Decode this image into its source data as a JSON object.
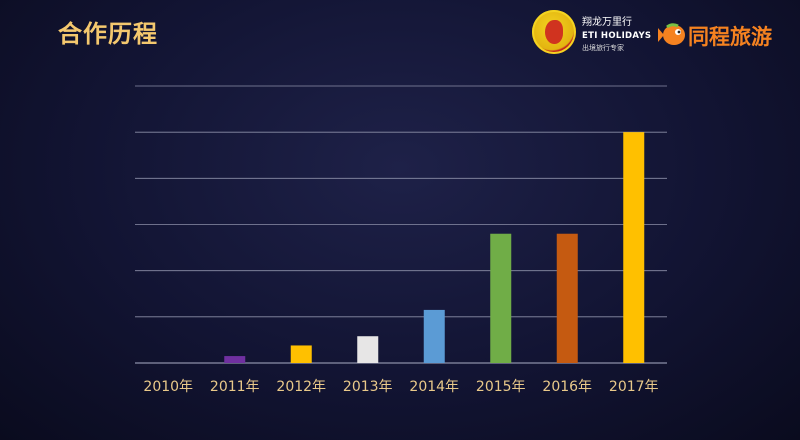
{
  "header": {
    "title": "合作历程"
  },
  "logos": [
    {
      "name": "翔龙万里行",
      "english": "ETI HOLIDAYS",
      "tagline": "出境旅行专家"
    },
    {
      "name": "同程旅游"
    }
  ],
  "colors": {
    "title": "#f4c86e",
    "tick_label": "#e9c98a",
    "grid": "#8c8fa8",
    "logo2": "#f58220"
  },
  "chart_data": {
    "type": "bar",
    "categories": [
      "2010年",
      "2011年",
      "2012年",
      "2013年",
      "2014年",
      "2015年",
      "2016年",
      "2017年"
    ],
    "values": [
      0,
      0.15,
      0.38,
      0.58,
      1.15,
      2.8,
      2.8,
      5.0
    ],
    "colors": [
      "#6b3fa0",
      "#7030a0",
      "#ffc000",
      "#e7e6e6",
      "#5b9bd5",
      "#70ad47",
      "#c55a11",
      "#ffc000"
    ],
    "ylim": [
      0,
      6
    ],
    "grid": true,
    "y_tick_labels_shown": false
  }
}
